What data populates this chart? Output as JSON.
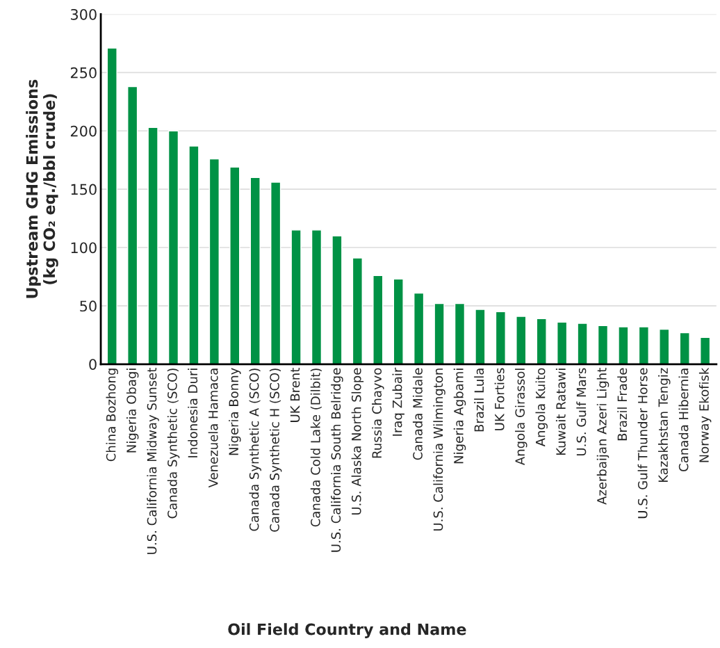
{
  "chart_data": {
    "type": "bar",
    "xlabel": "Oil Field Country and Name",
    "ylabel": "Upstream GHG Emissions\n(kg CO₂ eq./bbl crude)",
    "categories": [
      "China Bozhong",
      "Nigeria Obagi",
      "U.S. California Midway Sunset",
      "Canada Synthetic (SCO)",
      "Indonesia Duri",
      "Venezuela Hamaca",
      "Nigeria Bonny",
      "Canada Synthetic A (SCO)",
      "Canada Synthetic H (SCO)",
      "UK Brent",
      "Canada Cold Lake (Dilbit)",
      "U.S. California South Belridge",
      "U.S. Alaska North Slope",
      "Russia Chayvo",
      "Iraq Zubair",
      "Canada Midale",
      "U.S. California Wilmington",
      "Nigeria Agbami",
      "Brazil Lula",
      "UK Forties",
      "Angola Girassol",
      "Angola Kuito",
      "Kuwait Ratawi",
      "U.S. Gulf Mars",
      "Azerbaijan Azeri Light",
      "Brazil Frade",
      "U.S. Gulf Thunder Horse",
      "Kazakhstan Tengiz",
      "Canada Hibernia",
      "Norway Ekofisk"
    ],
    "values": [
      271,
      238,
      203,
      200,
      187,
      176,
      169,
      160,
      156,
      115,
      115,
      110,
      91,
      76,
      73,
      61,
      52,
      52,
      47,
      45,
      41,
      39,
      36,
      35,
      33,
      32,
      32,
      30,
      27,
      23
    ],
    "color": "#009245",
    "ylim": [
      0,
      300
    ],
    "yticks": [
      0,
      50,
      100,
      150,
      200,
      250,
      300
    ],
    "grid": "y"
  }
}
